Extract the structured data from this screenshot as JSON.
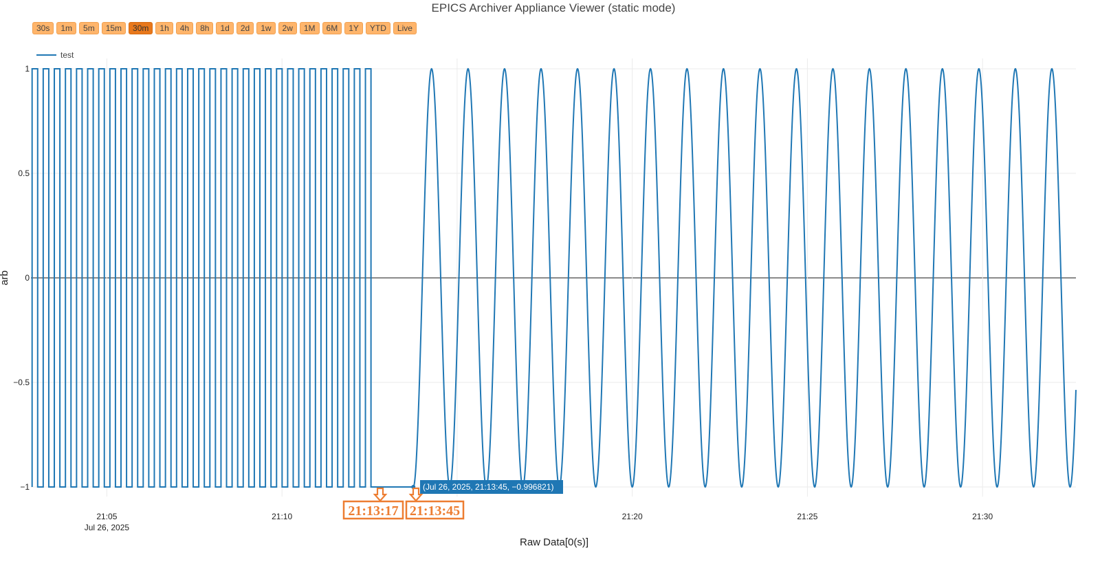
{
  "title": "EPICS Archiver Appliance Viewer (static mode)",
  "range_buttons": [
    {
      "label": "30s",
      "active": false
    },
    {
      "label": "1m",
      "active": false
    },
    {
      "label": "5m",
      "active": false
    },
    {
      "label": "15m",
      "active": false
    },
    {
      "label": "30m",
      "active": true
    },
    {
      "label": "1h",
      "active": false
    },
    {
      "label": "4h",
      "active": false
    },
    {
      "label": "8h",
      "active": false
    },
    {
      "label": "1d",
      "active": false
    },
    {
      "label": "2d",
      "active": false
    },
    {
      "label": "1w",
      "active": false
    },
    {
      "label": "2w",
      "active": false
    },
    {
      "label": "1M",
      "active": false
    },
    {
      "label": "6M",
      "active": false
    },
    {
      "label": "1Y",
      "active": false
    },
    {
      "label": "YTD",
      "active": false
    },
    {
      "label": "Live",
      "active": false
    }
  ],
  "colors": {
    "series": "#1f77b4",
    "button_bg": "#ffb56b",
    "button_active_bg": "#e8781c",
    "annotation": "#ed7d31",
    "hover_bg": "#1f77b4"
  },
  "chart_data": {
    "type": "line",
    "xlabel": "Raw Data[0(s)]",
    "ylabel": "arb",
    "xlim": [
      "2025-07-26 21:02:50",
      "2025-07-26 21:32:40"
    ],
    "ylim": [
      -1,
      1
    ],
    "y_ticks": [
      {
        "value": 1,
        "label": "1"
      },
      {
        "value": 0.5,
        "label": "0.5"
      },
      {
        "value": 0,
        "label": "0"
      },
      {
        "value": -0.5,
        "label": "−0.5"
      },
      {
        "value": -1,
        "label": "−1"
      }
    ],
    "x_ticks": [
      {
        "value": "2025-07-26 21:05:00",
        "label": "21:05",
        "sublabel": "Jul 26, 2025"
      },
      {
        "value": "2025-07-26 21:10:00",
        "label": "21:10",
        "sublabel": ""
      },
      {
        "value": "2025-07-26 21:15:00",
        "label": "",
        "sublabel": ""
      },
      {
        "value": "2025-07-26 21:20:00",
        "label": "21:20",
        "sublabel": ""
      },
      {
        "value": "2025-07-26 21:25:00",
        "label": "21:25",
        "sublabel": ""
      },
      {
        "value": "2025-07-26 21:30:00",
        "label": "21:30",
        "sublabel": ""
      }
    ],
    "grid": true,
    "legend_position": "top-left",
    "series": [
      {
        "name": "test",
        "segments": [
          {
            "shape": "square",
            "start": "2025-07-26 21:02:52",
            "end": "2025-07-26 21:12:42",
            "cycles": 31,
            "low": -1,
            "high": 1
          },
          {
            "shape": "flat",
            "start": "2025-07-26 21:12:42",
            "end": "2025-07-26 21:13:45",
            "value": -1
          },
          {
            "shape": "sine",
            "start": "2025-07-26 21:13:45",
            "end": "2025-07-26 21:32:40",
            "period_s": 62.5,
            "amplitude": 1,
            "start_value": -0.996821
          }
        ]
      }
    ],
    "hover_label": "(Jul 26, 2025, 21:13:45, −0.996821)",
    "annotations": [
      {
        "label": "21:13:17",
        "x": "2025-07-26 21:13:17"
      },
      {
        "label": "21:13:45",
        "x": "2025-07-26 21:13:45"
      }
    ]
  }
}
